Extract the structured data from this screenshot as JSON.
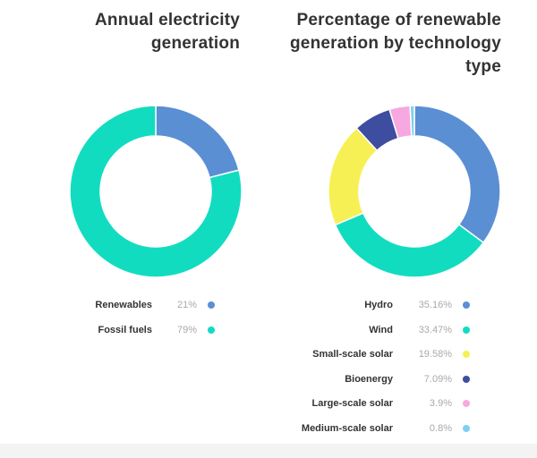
{
  "chart_data": [
    {
      "type": "pie",
      "title": "Annual electricity\ngeneration",
      "categories": [
        "Renewables",
        "Fossil fuels"
      ],
      "values": [
        21,
        79
      ],
      "value_labels": [
        "21%",
        "79%"
      ],
      "colors": [
        "#5b8fd4",
        "#12dcc0"
      ],
      "legend_position": "bottom"
    },
    {
      "type": "pie",
      "title": "Percentage of renewable\ngeneration by technology\ntype",
      "categories": [
        "Hydro",
        "Wind",
        "Small-scale solar",
        "Bioenergy",
        "Large-scale solar",
        "Medium-scale solar"
      ],
      "values": [
        35.16,
        33.47,
        19.58,
        7.09,
        3.9,
        0.8
      ],
      "value_labels": [
        "35.16%",
        "33.47%",
        "19.58%",
        "7.09%",
        "3.9%",
        "0.8%"
      ],
      "colors": [
        "#5b8fd4",
        "#12dcc0",
        "#f7f054",
        "#3d4ea0",
        "#f7a8e0",
        "#7fd0ef"
      ],
      "legend_position": "bottom"
    }
  ]
}
